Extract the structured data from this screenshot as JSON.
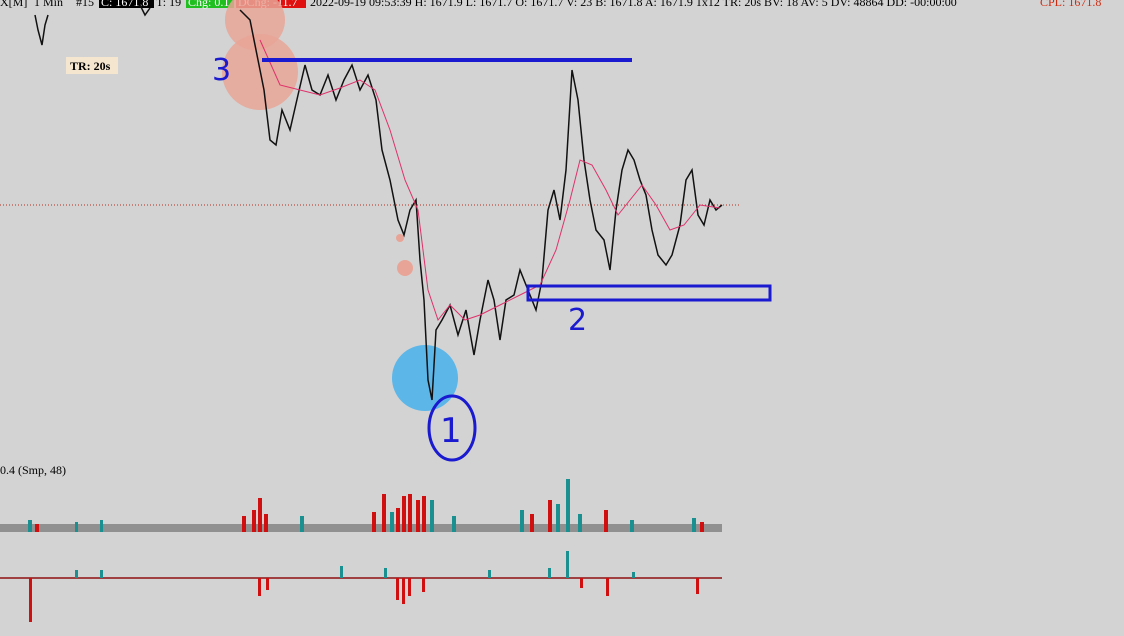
{
  "header": {
    "symbol": "X[M]",
    "interval": "1 Min",
    "bar_number": "#15",
    "close": "C: 1671.8",
    "ticks": "T: 19",
    "change": "Chg: 0.1",
    "day_change": "DChg: -11.7",
    "details": "2022-09-19 09:53:39 H: 1671.9 L: 1671.7 O: 1671.7 V: 23 B: 1671.8 A: 1671.9 1x12 TR: 20s BV: 18 AV: 5 DV: 48864 DD: -00:00:00",
    "cpl": "CPL: 1671.8"
  },
  "timer_label": "TR: 20s",
  "indicator_label": "0.4   (Smp, 48)",
  "annotations": [
    "3",
    "2",
    "1"
  ]
}
